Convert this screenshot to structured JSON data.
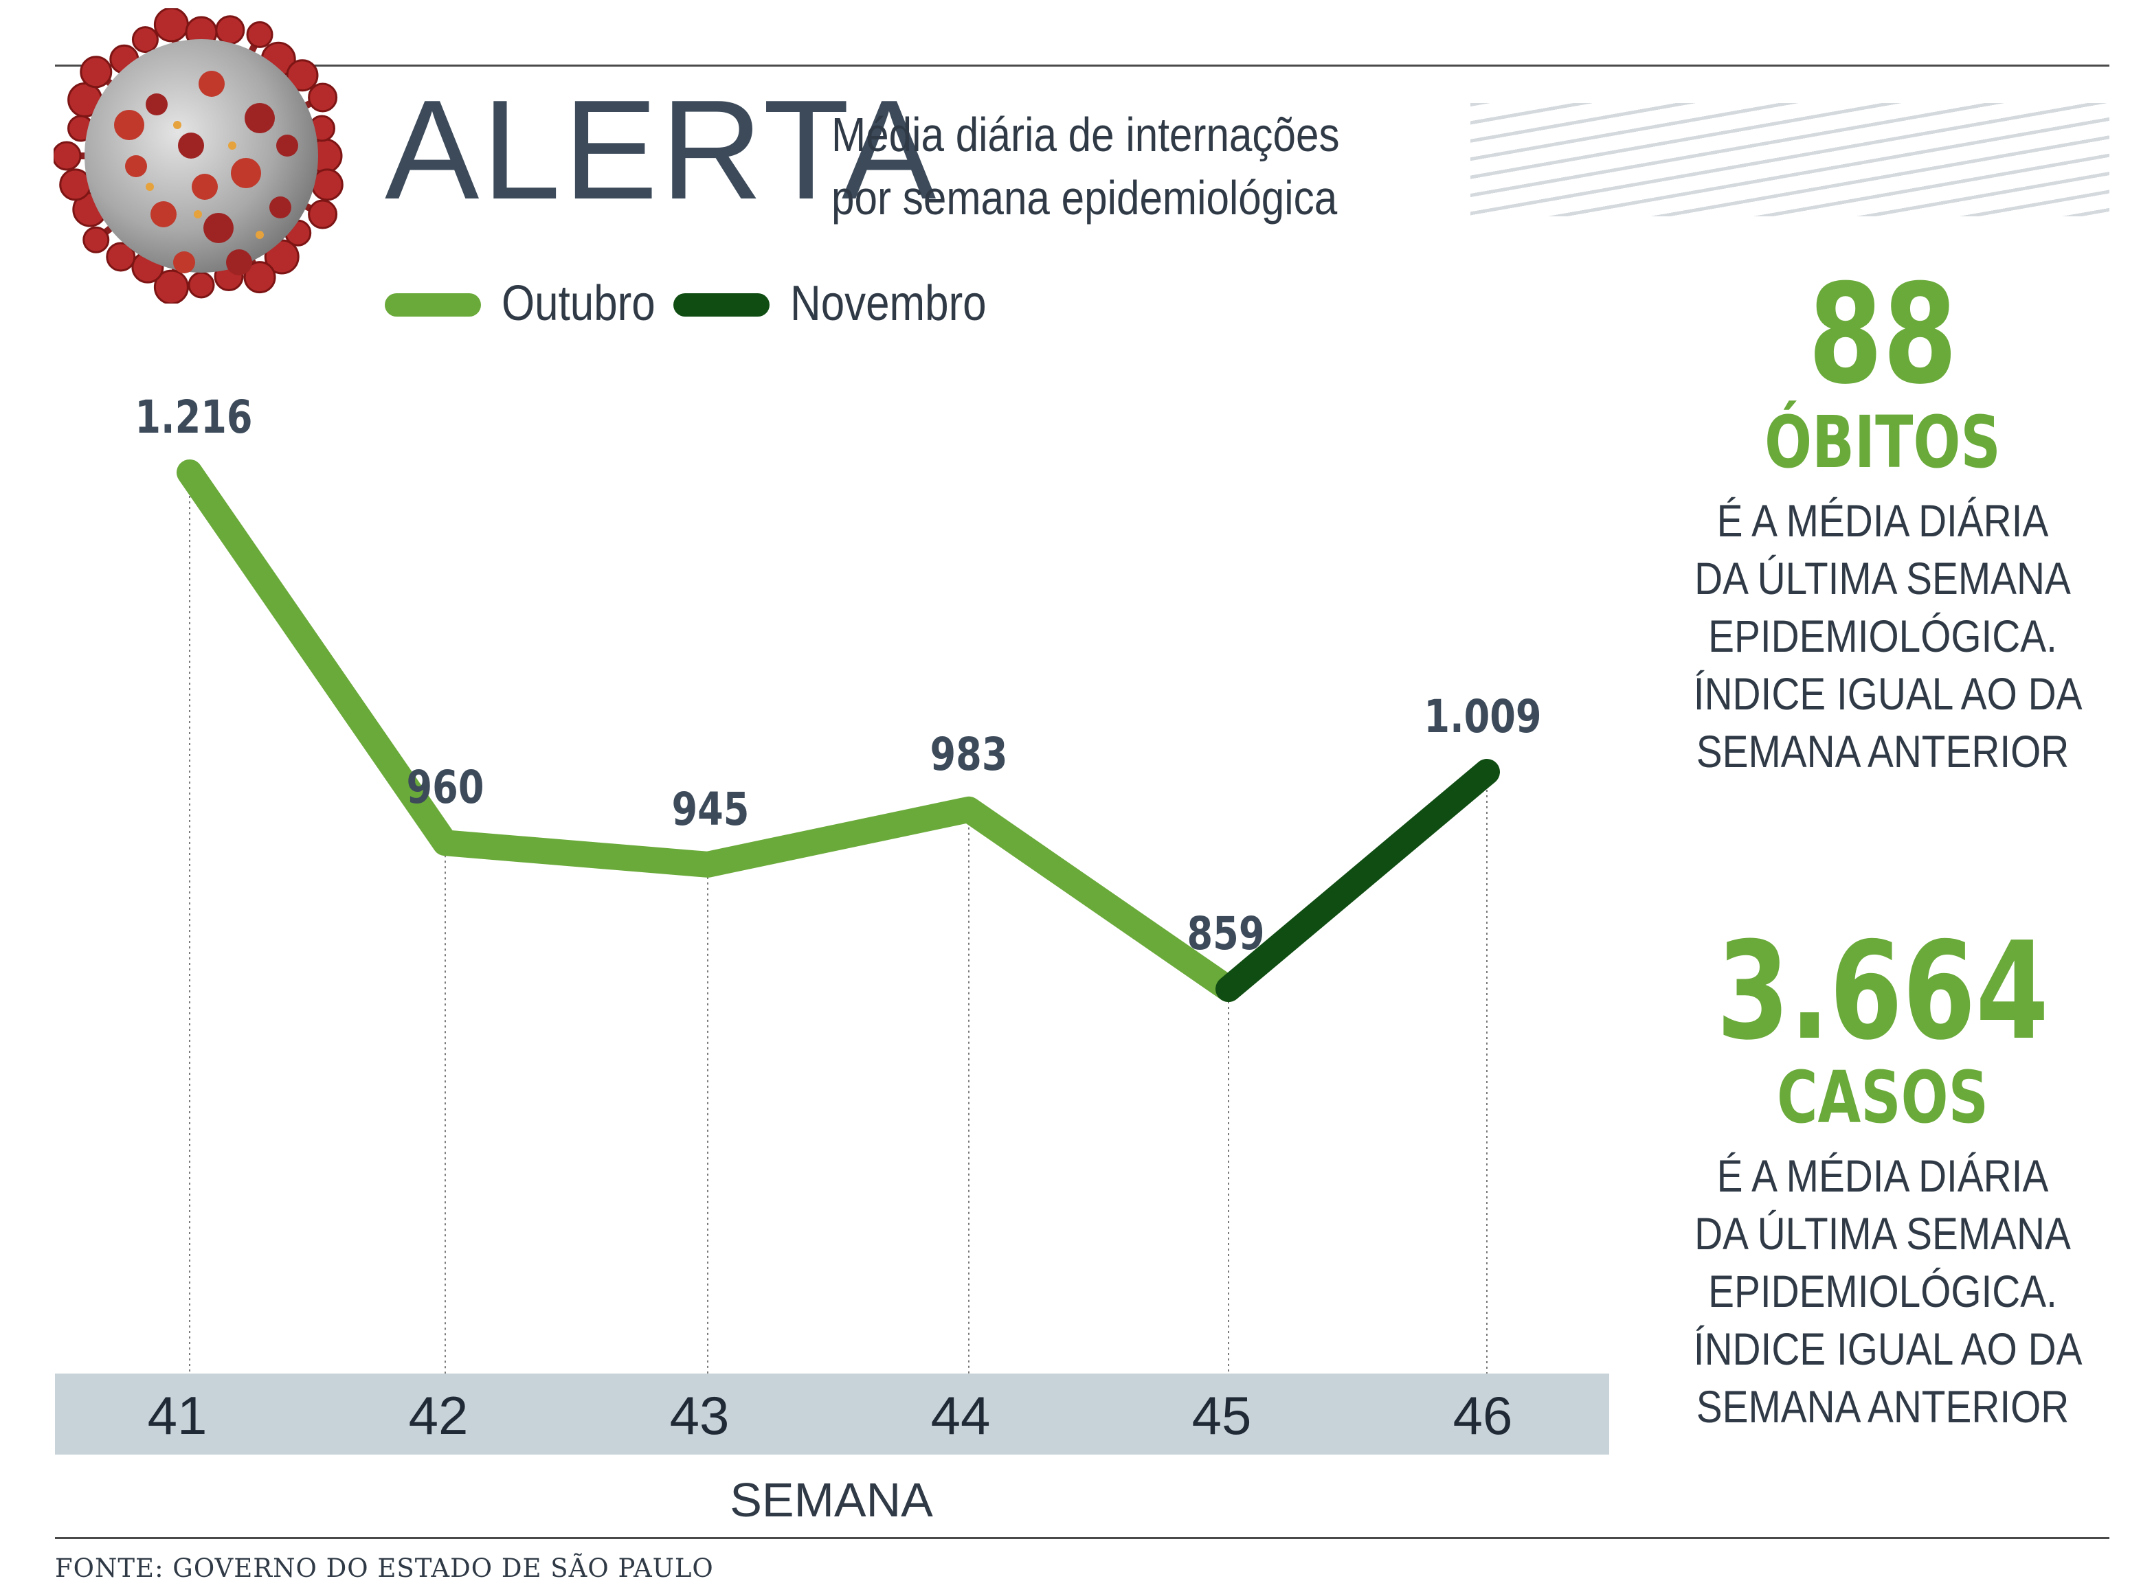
{
  "header": {
    "headline": "ALERTA",
    "subtitle_line1": "Média diária de internações",
    "subtitle_line2": "por semana epidemiológica"
  },
  "legend": [
    {
      "label": "Outubro",
      "color": "#6aaa3a"
    },
    {
      "label": "Novembro",
      "color": "#0f4d12"
    }
  ],
  "chart_data": {
    "type": "line",
    "x": [
      "41",
      "42",
      "43",
      "44",
      "45",
      "46"
    ],
    "values": [
      1216,
      960,
      945,
      983,
      859,
      1009
    ],
    "value_labels": [
      "1.216",
      "960",
      "945",
      "983",
      "859",
      "1.009"
    ],
    "xlabel": "SEMANA",
    "ylabel": "",
    "series": [
      {
        "name": "Outubro",
        "x": [
          "41",
          "42",
          "43",
          "44",
          "45"
        ],
        "values": [
          1216,
          960,
          945,
          983,
          859
        ],
        "color": "#6aaa3a"
      },
      {
        "name": "Novembro",
        "x": [
          "45",
          "46"
        ],
        "values": [
          859,
          1009
        ],
        "color": "#0f4d12"
      }
    ],
    "grid": "vertical dotted lines at each week",
    "legend_position": "top-left"
  },
  "stats": {
    "deaths": {
      "value": "88",
      "unit": "ÓBITOS",
      "note": [
        "É A MÉDIA DIÁRIA",
        "DA ÚLTIMA SEMANA",
        "EPIDEMIOLÓGICA.",
        "ÍNDICE IGUAL AO DA",
        "SEMANA ANTERIOR"
      ]
    },
    "cases": {
      "value": "3.664",
      "unit": "CASOS",
      "note": [
        "É A MÉDIA DIÁRIA",
        "DA ÚLTIMA SEMANA",
        "EPIDEMIOLÓGICA.",
        "ÍNDICE IGUAL AO DA",
        "SEMANA ANTERIOR"
      ]
    }
  },
  "source": "FONTE: GOVERNO DO ESTADO DE SÃO PAULO",
  "icons": {
    "virus": "coronavirus-illustration-icon"
  }
}
